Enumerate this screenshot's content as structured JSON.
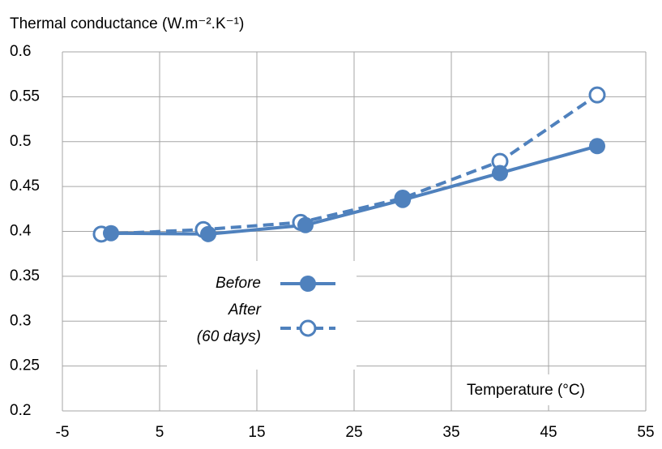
{
  "chart_data": {
    "type": "line",
    "y_label": "Thermal conductance (W.m⁻².K⁻¹)",
    "x_label": "Temperature (°C)",
    "series": [
      {
        "name": "Before",
        "color": "#4f81bd",
        "style": "solid",
        "marker": "filled",
        "x": [
          0,
          10,
          20,
          30,
          40,
          50
        ],
        "values": [
          0.398,
          0.397,
          0.407,
          0.435,
          0.465,
          0.495
        ]
      },
      {
        "name": "After (60 days)",
        "color": "#4f81bd",
        "style": "dashed",
        "marker": "open",
        "x": [
          -1,
          9.5,
          19.5,
          30,
          40,
          50
        ],
        "values": [
          0.397,
          0.402,
          0.41,
          0.437,
          0.478,
          0.552
        ]
      }
    ],
    "xlim": [
      -5,
      55
    ],
    "xticks": [
      -5,
      5,
      15,
      25,
      35,
      45,
      55
    ],
    "ylim": [
      0.2,
      0.6
    ],
    "yticks": [
      0.2,
      0.25,
      0.3,
      0.35,
      0.4,
      0.45,
      0.5,
      0.55,
      0.6
    ],
    "grid": true
  }
}
